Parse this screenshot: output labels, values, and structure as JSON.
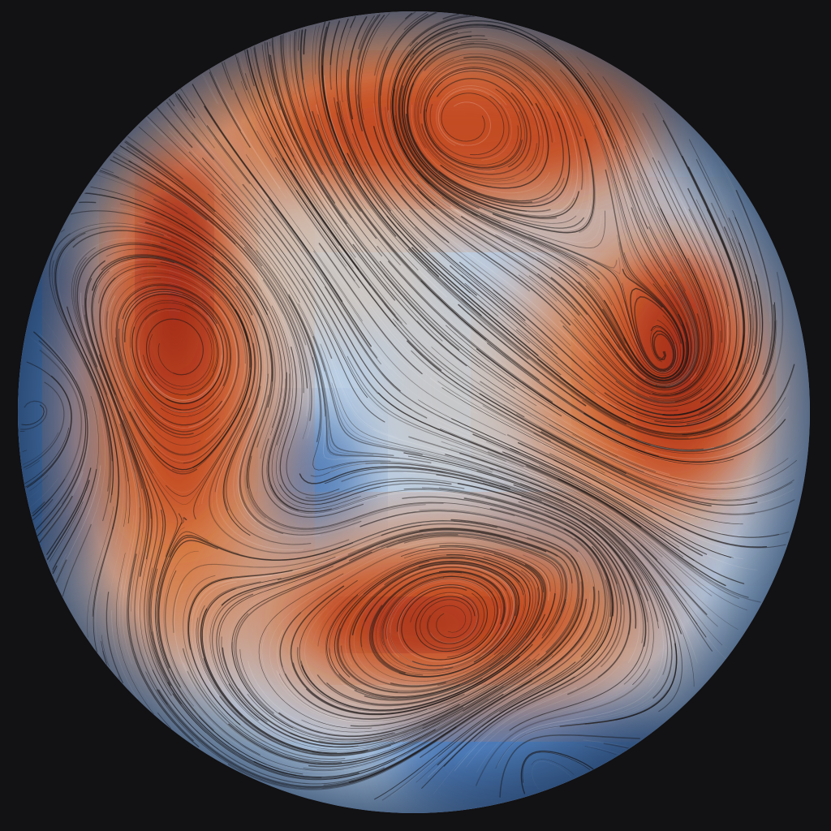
{
  "image": {
    "subject": "streamline-flow-disc",
    "colors": {
      "background": "#121113",
      "deep_blue": "#3f6fb0",
      "blue": "#6f9bd0",
      "light_blue": "#b9cde3",
      "pale": "#d9c3ae",
      "orange": "#d9783f",
      "red_orange": "#c24a22",
      "deep_red": "#8f1f12",
      "streak": "#1c1716"
    }
  }
}
